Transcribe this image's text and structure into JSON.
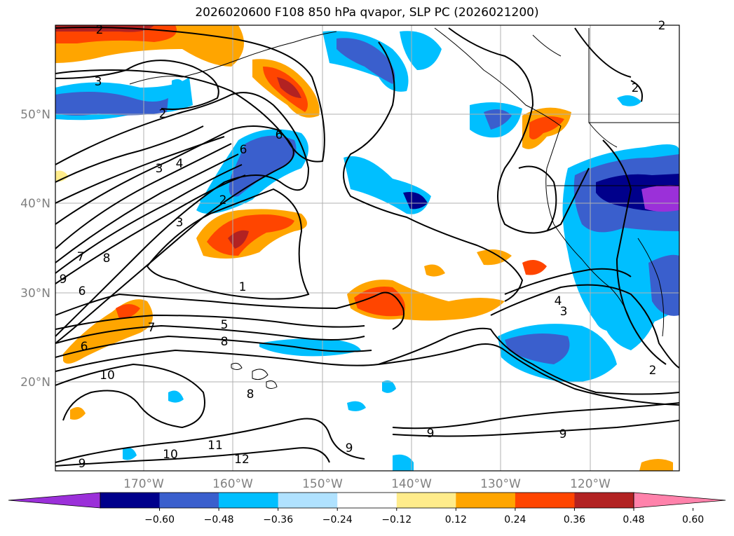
{
  "title": "2026020600 F108 850 hPa qvapor, SLP PC (2026021200)",
  "map": {
    "lat_labels": [
      "50°N",
      "40°N",
      "30°N",
      "20°N"
    ],
    "lon_labels": [
      "170°W",
      "160°W",
      "150°W",
      "140°W",
      "130°W",
      "120°W"
    ],
    "gridline_color": "#b0b0b0",
    "coastline_color": "#000000"
  },
  "colorbar": {
    "ticks": [
      "−0.60",
      "−0.48",
      "−0.36",
      "−0.24",
      "−0.12",
      "0.12",
      "0.24",
      "0.36",
      "0.48",
      "0.60"
    ],
    "colors": [
      "#9b30d9",
      "#00008b",
      "#3a5fcd",
      "#00bfff",
      "#b0e2ff",
      "#ffffff",
      "#ffec8b",
      "#ffa500",
      "#ff4500",
      "#b22222",
      "#ff82ab"
    ]
  },
  "contour_labels": [
    "2",
    "3",
    "2",
    "6",
    "6",
    "3",
    "4",
    "2",
    "3",
    "7",
    "8",
    "9",
    "6",
    "1",
    "5",
    "8",
    "7",
    "6",
    "10",
    "8",
    "10",
    "11",
    "12",
    "9",
    "9",
    "9",
    "4",
    "3",
    "2",
    "2",
    "2",
    "9"
  ],
  "colors": {
    "purple": "#9b30d9",
    "navy": "#00008b",
    "royal": "#3a5fcd",
    "sky": "#00bfff",
    "pale": "#b0e2ff",
    "yellow": "#ffec8b",
    "orange": "#ffa500",
    "red": "#ff4500",
    "brick": "#b22222",
    "pink": "#ff82ab"
  }
}
